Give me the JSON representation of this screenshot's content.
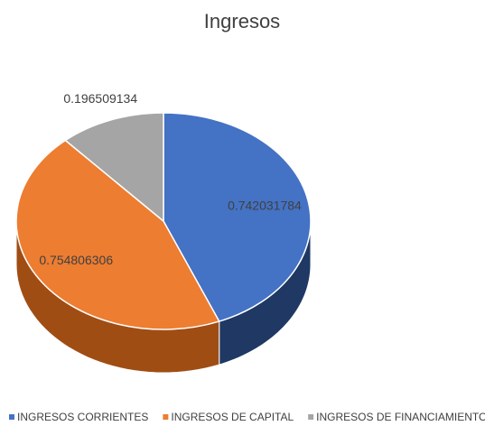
{
  "chart_data": {
    "type": "pie",
    "title": "Ingresos",
    "categories": [
      "INGRESOS CORRIENTES",
      "INGRESOS DE CAPITAL",
      "INGRESOS DE FINANCIAMIENTO"
    ],
    "values": [
      0.742031784,
      0.754806306,
      0.196509134
    ],
    "colors": [
      "#4472c4",
      "#ed7d31",
      "#a5a5a5"
    ],
    "side_colors": [
      "#1f3864",
      "#a04d14",
      "#6d6d6d"
    ],
    "legend": "bottom",
    "three_d": true
  }
}
